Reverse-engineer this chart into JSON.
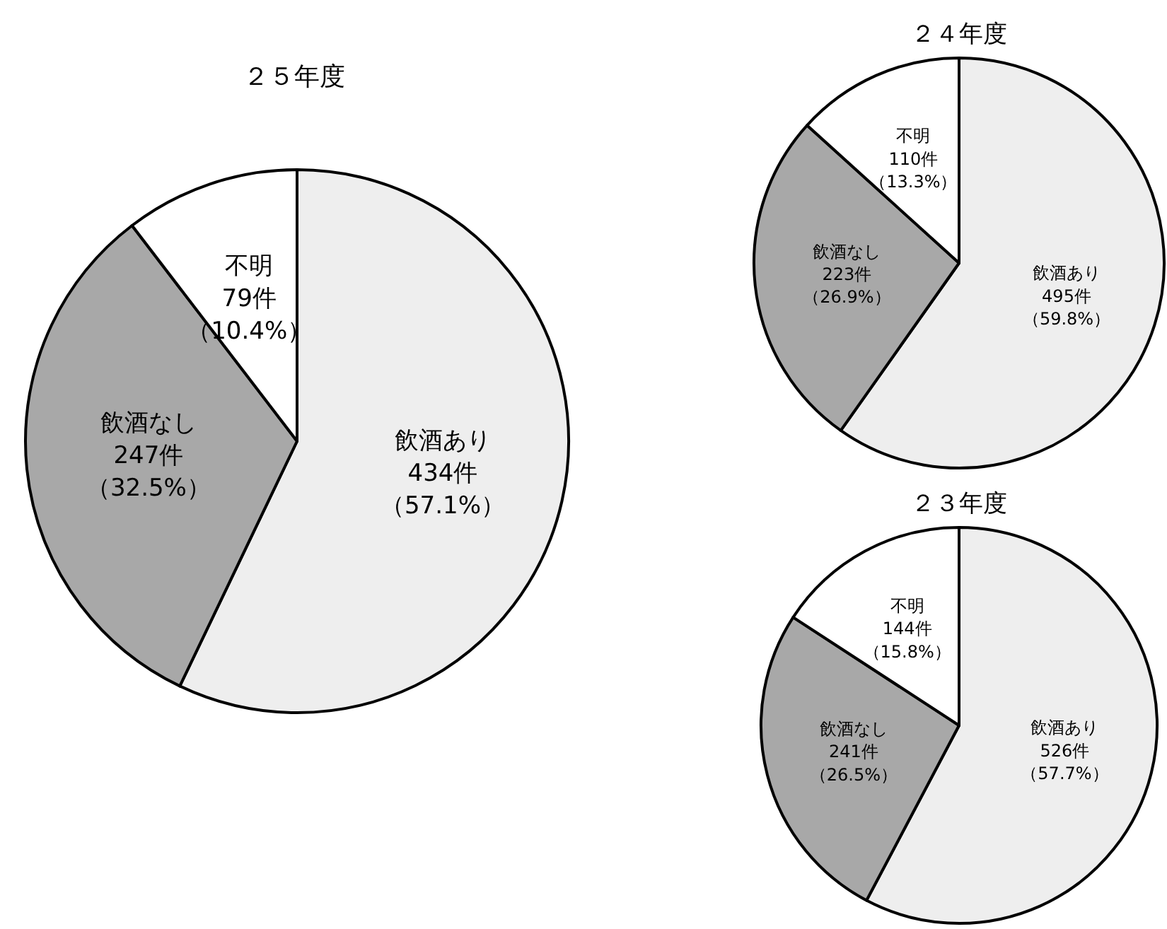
{
  "chart_data": [
    {
      "type": "pie",
      "title": "２５年度",
      "categories": [
        "飲酒あり",
        "飲酒なし",
        "不明"
      ],
      "values": [
        434,
        247,
        79
      ],
      "colors": [
        "#eeeeee",
        "#a8a8a8",
        "#ffffff"
      ],
      "value_labels": [
        "434件（57.1%）",
        "247件（32.5%）",
        "79件（10.4%）"
      ]
    },
    {
      "type": "pie",
      "title": "２４年度",
      "categories": [
        "飲酒あり",
        "飲酒なし",
        "不明"
      ],
      "values": [
        495,
        223,
        110
      ],
      "colors": [
        "#eeeeee",
        "#a8a8a8",
        "#ffffff"
      ],
      "value_labels": [
        "495件（59.8%）",
        "223件（26.9%）",
        "110件（13.3%）"
      ]
    },
    {
      "type": "pie",
      "title": "２３年度",
      "categories": [
        "飲酒あり",
        "飲酒なし",
        "不明"
      ],
      "values": [
        526,
        241,
        144
      ],
      "colors": [
        "#eeeeee",
        "#a8a8a8",
        "#ffffff"
      ],
      "value_labels": [
        "526件（57.7%）",
        "241件（26.5%）",
        "144件（15.8%）"
      ]
    }
  ]
}
